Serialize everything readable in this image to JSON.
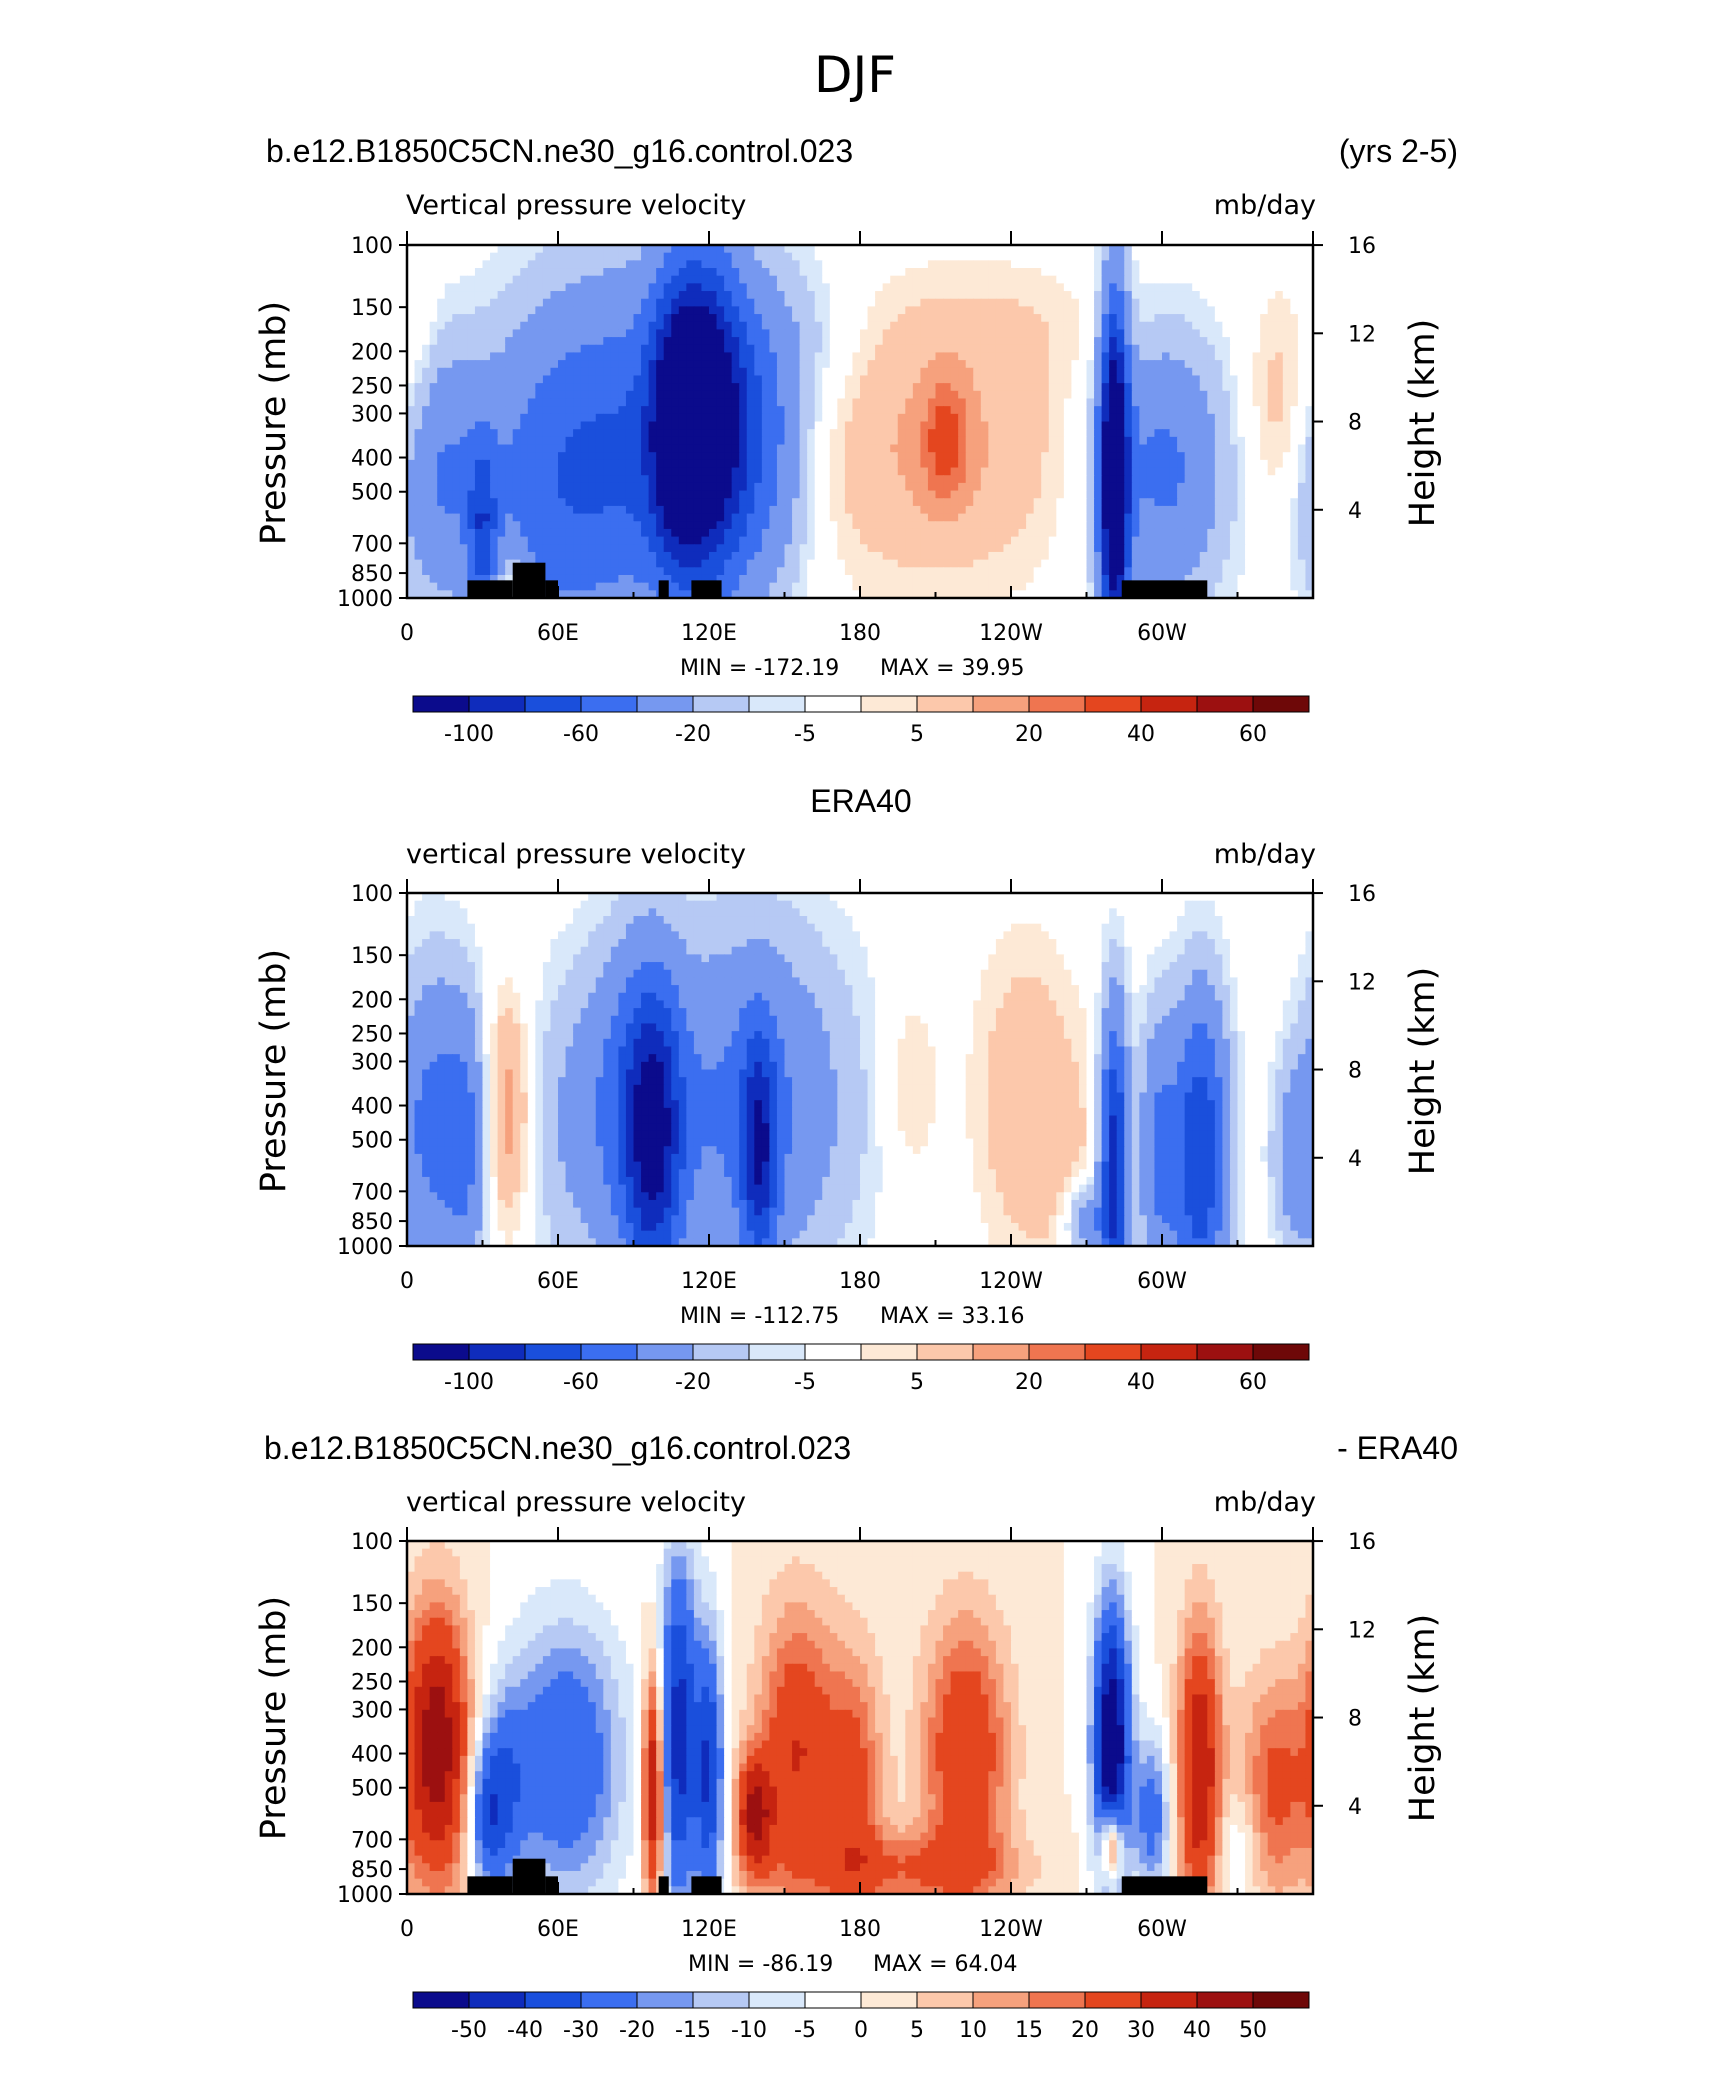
{
  "figure_title": "DJF",
  "chart_data": [
    {
      "type": "heatmap",
      "title_left": "b.e12.B1850C5CN.ne30_g16.control.023",
      "title_right": "(yrs 2-5)",
      "variable": "Vertical pressure velocity",
      "units": "mb/day",
      "ylabel": "Pressure (mb)",
      "ylabel_right": "Height (km)",
      "y_ticks": [
        "100",
        "150",
        "200",
        "250",
        "300",
        "400",
        "500",
        "700",
        "850",
        "1000"
      ],
      "y_right_ticks": [
        "16",
        "12",
        "8",
        "4"
      ],
      "x_ticks": [
        "0",
        "60E",
        "120E",
        "180",
        "120W",
        "60W"
      ],
      "min_text": "MIN = -172.19",
      "max_text": "MAX = 39.95",
      "colorbar_labels": [
        "-100",
        "-60",
        "-20",
        "-5",
        "5",
        "20",
        "40",
        "60"
      ],
      "features": [
        {
          "lon": 12,
          "p": 450,
          "w": 14,
          "h": 0.65,
          "v": -38
        },
        {
          "lon": 30,
          "p": 650,
          "w": 4,
          "h": 0.45,
          "v": -50
        },
        {
          "lon": 55,
          "p": 500,
          "w": 20,
          "h": 0.9,
          "v": -40
        },
        {
          "lon": 95,
          "p": 380,
          "w": 26,
          "h": 0.9,
          "v": -55
        },
        {
          "lon": 108,
          "p": 320,
          "w": 8,
          "h": 0.7,
          "v": -85
        },
        {
          "lon": 120,
          "p": 300,
          "w": 10,
          "h": 0.8,
          "v": -90
        },
        {
          "lon": 140,
          "p": 350,
          "w": 14,
          "h": 0.8,
          "v": -45
        },
        {
          "lon": 210,
          "p": 380,
          "w": 38,
          "h": 0.7,
          "v": 22
        },
        {
          "lon": 214,
          "p": 360,
          "w": 6,
          "h": 0.3,
          "v": 28
        },
        {
          "lon": 281,
          "p": 450,
          "w": 4,
          "h": 0.9,
          "v": -140
        },
        {
          "lon": 300,
          "p": 430,
          "w": 18,
          "h": 0.7,
          "v": -45
        },
        {
          "lon": 348,
          "p": 300,
          "w": 10,
          "h": 0.6,
          "v": 18
        },
        {
          "lon": 42,
          "p": 900,
          "w": 5,
          "h": 0.2,
          "v": 25
        },
        {
          "lon": 242,
          "p": 170,
          "w": 40,
          "h": 0.35,
          "v": 6
        },
        {
          "lon": 165,
          "p": 180,
          "w": 14,
          "h": 0.4,
          "v": -8
        },
        {
          "lon": 5,
          "p": 200,
          "w": 5,
          "h": 0.8,
          "v": 7
        }
      ]
    },
    {
      "type": "heatmap",
      "title_center": "ERA40",
      "variable": "vertical pressure velocity",
      "units": "mb/day",
      "ylabel": "Pressure (mb)",
      "ylabel_right": "Height (km)",
      "y_ticks": [
        "100",
        "150",
        "200",
        "250",
        "300",
        "400",
        "500",
        "700",
        "850",
        "1000"
      ],
      "y_right_ticks": [
        "16",
        "12",
        "8",
        "4"
      ],
      "x_ticks": [
        "0",
        "60E",
        "120E",
        "180",
        "120W",
        "60W"
      ],
      "min_text": "MIN = -112.75",
      "max_text": "MAX = 33.16",
      "colorbar_labels": [
        "-100",
        "-60",
        "-20",
        "-5",
        "5",
        "20",
        "40",
        "60"
      ],
      "features": [
        {
          "lon": 10,
          "p": 450,
          "w": 10,
          "h": 0.8,
          "v": -45
        },
        {
          "lon": 24,
          "p": 500,
          "w": 6,
          "h": 0.7,
          "v": -35
        },
        {
          "lon": 40,
          "p": 420,
          "w": 7,
          "h": 0.6,
          "v": 28
        },
        {
          "lon": 65,
          "p": 450,
          "w": 14,
          "h": 0.8,
          "v": -18
        },
        {
          "lon": 98,
          "p": 500,
          "w": 8,
          "h": 0.8,
          "v": -80
        },
        {
          "lon": 88,
          "p": 400,
          "w": 12,
          "h": 0.8,
          "v": -35
        },
        {
          "lon": 135,
          "p": 400,
          "w": 28,
          "h": 0.9,
          "v": -45
        },
        {
          "lon": 140,
          "p": 550,
          "w": 5,
          "h": 0.6,
          "v": -70
        },
        {
          "lon": 200,
          "p": 350,
          "w": 8,
          "h": 0.5,
          "v": 12
        },
        {
          "lon": 245,
          "p": 380,
          "w": 14,
          "h": 0.8,
          "v": 18
        },
        {
          "lon": 265,
          "p": 600,
          "w": 12,
          "h": 0.7,
          "v": 8
        },
        {
          "lon": 281,
          "p": 600,
          "w": 4,
          "h": 0.8,
          "v": -95
        },
        {
          "lon": 270,
          "p": 850,
          "w": 6,
          "h": 0.2,
          "v": -35
        },
        {
          "lon": 298,
          "p": 550,
          "w": 5,
          "h": 0.7,
          "v": -40
        },
        {
          "lon": 315,
          "p": 550,
          "w": 8,
          "h": 0.8,
          "v": -80
        },
        {
          "lon": 352,
          "p": 550,
          "w": 6,
          "h": 0.5,
          "v": -25
        }
      ]
    },
    {
      "type": "heatmap",
      "title_left": "b.e12.B1850C5CN.ne30_g16.control.023",
      "title_right": "- ERA40",
      "variable": "vertical pressure velocity",
      "units": "mb/day",
      "ylabel": "Pressure (mb)",
      "ylabel_right": "Height (km)",
      "y_ticks": [
        "100",
        "150",
        "200",
        "250",
        "300",
        "400",
        "500",
        "700",
        "850",
        "1000"
      ],
      "y_right_ticks": [
        "16",
        "12",
        "8",
        "4"
      ],
      "x_ticks": [
        "0",
        "60E",
        "120E",
        "180",
        "120W",
        "60W"
      ],
      "min_text": "MIN = -86.19",
      "max_text": "MAX = 64.04",
      "colorbar_labels": [
        "-50",
        "-40",
        "-30",
        "-20",
        "-15",
        "-10",
        "-5",
        "0",
        "5",
        "10",
        "15",
        "20",
        "30",
        "40",
        "50"
      ],
      "features": [
        {
          "lon": 12,
          "p": 380,
          "w": 9,
          "h": 0.7,
          "v": 48
        },
        {
          "lon": 32,
          "p": 600,
          "w": 5,
          "h": 0.4,
          "v": -30
        },
        {
          "lon": 40,
          "p": 500,
          "w": 6,
          "h": 0.5,
          "v": -18
        },
        {
          "lon": 63,
          "p": 420,
          "w": 16,
          "h": 0.7,
          "v": -30
        },
        {
          "lon": 98,
          "p": 500,
          "w": 3,
          "h": 0.6,
          "v": 45
        },
        {
          "lon": 108,
          "p": 350,
          "w": 5,
          "h": 0.9,
          "v": -45
        },
        {
          "lon": 120,
          "p": 450,
          "w": 4,
          "h": 0.7,
          "v": -40
        },
        {
          "lon": 138,
          "p": 600,
          "w": 5,
          "h": 0.3,
          "v": 40
        },
        {
          "lon": 155,
          "p": 400,
          "w": 11,
          "h": 0.75,
          "v": 30
        },
        {
          "lon": 178,
          "p": 500,
          "w": 8,
          "h": 0.7,
          "v": 22
        },
        {
          "lon": 222,
          "p": 400,
          "w": 12,
          "h": 0.7,
          "v": 30
        },
        {
          "lon": 280,
          "p": 380,
          "w": 5,
          "h": 0.7,
          "v": -65
        },
        {
          "lon": 280,
          "p": 720,
          "w": 3,
          "h": 0.2,
          "v": 45
        },
        {
          "lon": 296,
          "p": 600,
          "w": 5,
          "h": 0.4,
          "v": -25
        },
        {
          "lon": 315,
          "p": 450,
          "w": 6,
          "h": 0.75,
          "v": 40
        },
        {
          "lon": 345,
          "p": 500,
          "w": 10,
          "h": 0.6,
          "v": 22
        },
        {
          "lon": 330,
          "p": 750,
          "w": 6,
          "h": 0.3,
          "v": -10
        },
        {
          "lon": 200,
          "p": 850,
          "w": 30,
          "h": 0.2,
          "v": 18
        }
      ]
    }
  ],
  "colors": {
    "neg": [
      "#0b0b8c",
      "#0f2cbc",
      "#1a4fdc",
      "#3b6ef0",
      "#7698f0",
      "#b6c9f4",
      "#d9e8fa"
    ],
    "pos": [
      "#fde9d6",
      "#fcc8ab",
      "#f6a17d",
      "#ef7550",
      "#e4461f",
      "#c62410",
      "#9c1010",
      "#6e0808"
    ]
  }
}
